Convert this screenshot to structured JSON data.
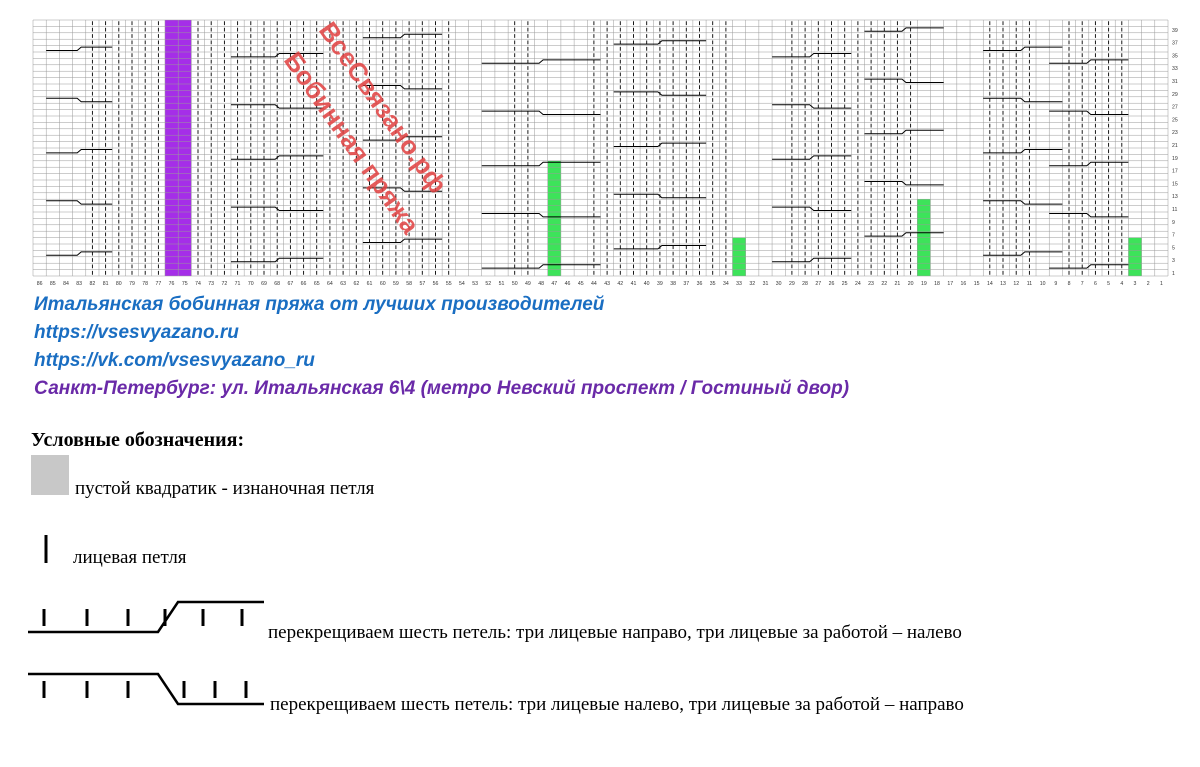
{
  "watermark": {
    "line1": "ВсеСвязано.рф",
    "line2": "Бобинная пряжа"
  },
  "chart": {
    "columns_desc": [
      86,
      85,
      84,
      83,
      82,
      81,
      80,
      79,
      78,
      77,
      76,
      75,
      74,
      73,
      72,
      71,
      70,
      69,
      68,
      67,
      66,
      65,
      64,
      63,
      62,
      61,
      60,
      59,
      58,
      57,
      56,
      55,
      54,
      53,
      52,
      51,
      50,
      49,
      48,
      47,
      46,
      45,
      44,
      43,
      42,
      41,
      40,
      39,
      38,
      37,
      36,
      35,
      34,
      33,
      32,
      31,
      30,
      29,
      28,
      27,
      26,
      25,
      24,
      23,
      22,
      21,
      20,
      19,
      18,
      17,
      16,
      15,
      14,
      13,
      12,
      11,
      10,
      9,
      8,
      7,
      6,
      5,
      4,
      3,
      2,
      1
    ],
    "row_labels": [
      39,
      37,
      35,
      33,
      31,
      29,
      27,
      25,
      23,
      21,
      19,
      17,
      15,
      13,
      11,
      9,
      7,
      5,
      3,
      1
    ],
    "colors": {
      "purple": "#a52ee8",
      "green": "#3de35a",
      "grid": "#9a9a9a"
    }
  },
  "info": {
    "line1": "Итальянская бобинная пряжа от лучших производителей",
    "line2": "https://vsesvyazano.ru",
    "line3": "https://vk.com/vsesvyazano_ru",
    "line4": "Санкт-Петербург: ул. Итальянская 6\\4 (метро Невский проспект / Гостиный двор)",
    "color_blue": "#1a6ec2",
    "color_purple": "#6a2aa8"
  },
  "legend": {
    "title": "Условные обозначения:",
    "purl": "пустой квадратик -   изнаночная петля",
    "knit": "лицевая петля",
    "cross_right": "перекрещиваем шесть  петель: три лицевые направо, три лицевые за работой – налево",
    "cross_left": "перекрещиваем шесть петель: три лицевые налево, три лицевые  за работой – направо"
  }
}
